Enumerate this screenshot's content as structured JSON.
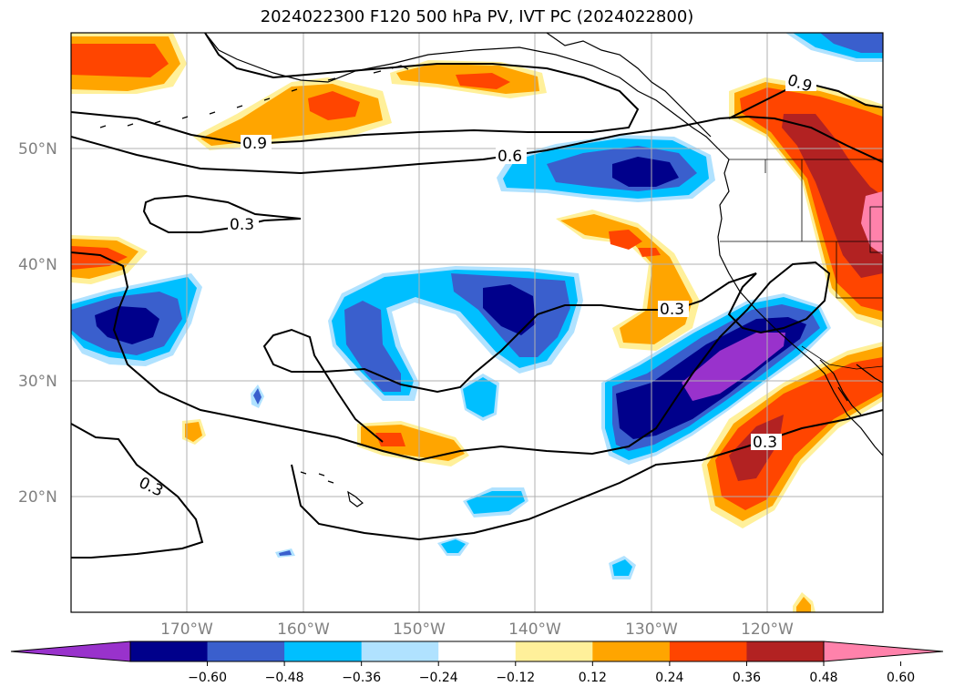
{
  "title": "2024022300 F120 500 hPa PV, IVT PC (2024022800)",
  "lat_labels": [
    "50°N",
    "40°N",
    "30°N",
    "20°N"
  ],
  "lon_labels": [
    "170°W",
    "160°W",
    "150°W",
    "140°W",
    "130°W",
    "120°W"
  ],
  "contour_labels": [
    "0.9",
    "0.6",
    "0.3",
    "0.3",
    "0.3",
    "0.9",
    "0.3"
  ],
  "colorbar": {
    "ticks": [
      "−0.60",
      "−0.48",
      "−0.36",
      "−0.24",
      "−0.12",
      "0.12",
      "0.24",
      "0.36",
      "0.48",
      "0.60"
    ],
    "colors": [
      "#9932cc",
      "#00008b",
      "#3a5fcd",
      "#00bfff",
      "#b0e2ff",
      "#ffffff",
      "#fff09a",
      "#ffa500",
      "#ff4500",
      "#b22222",
      "#ff82ab"
    ]
  }
}
